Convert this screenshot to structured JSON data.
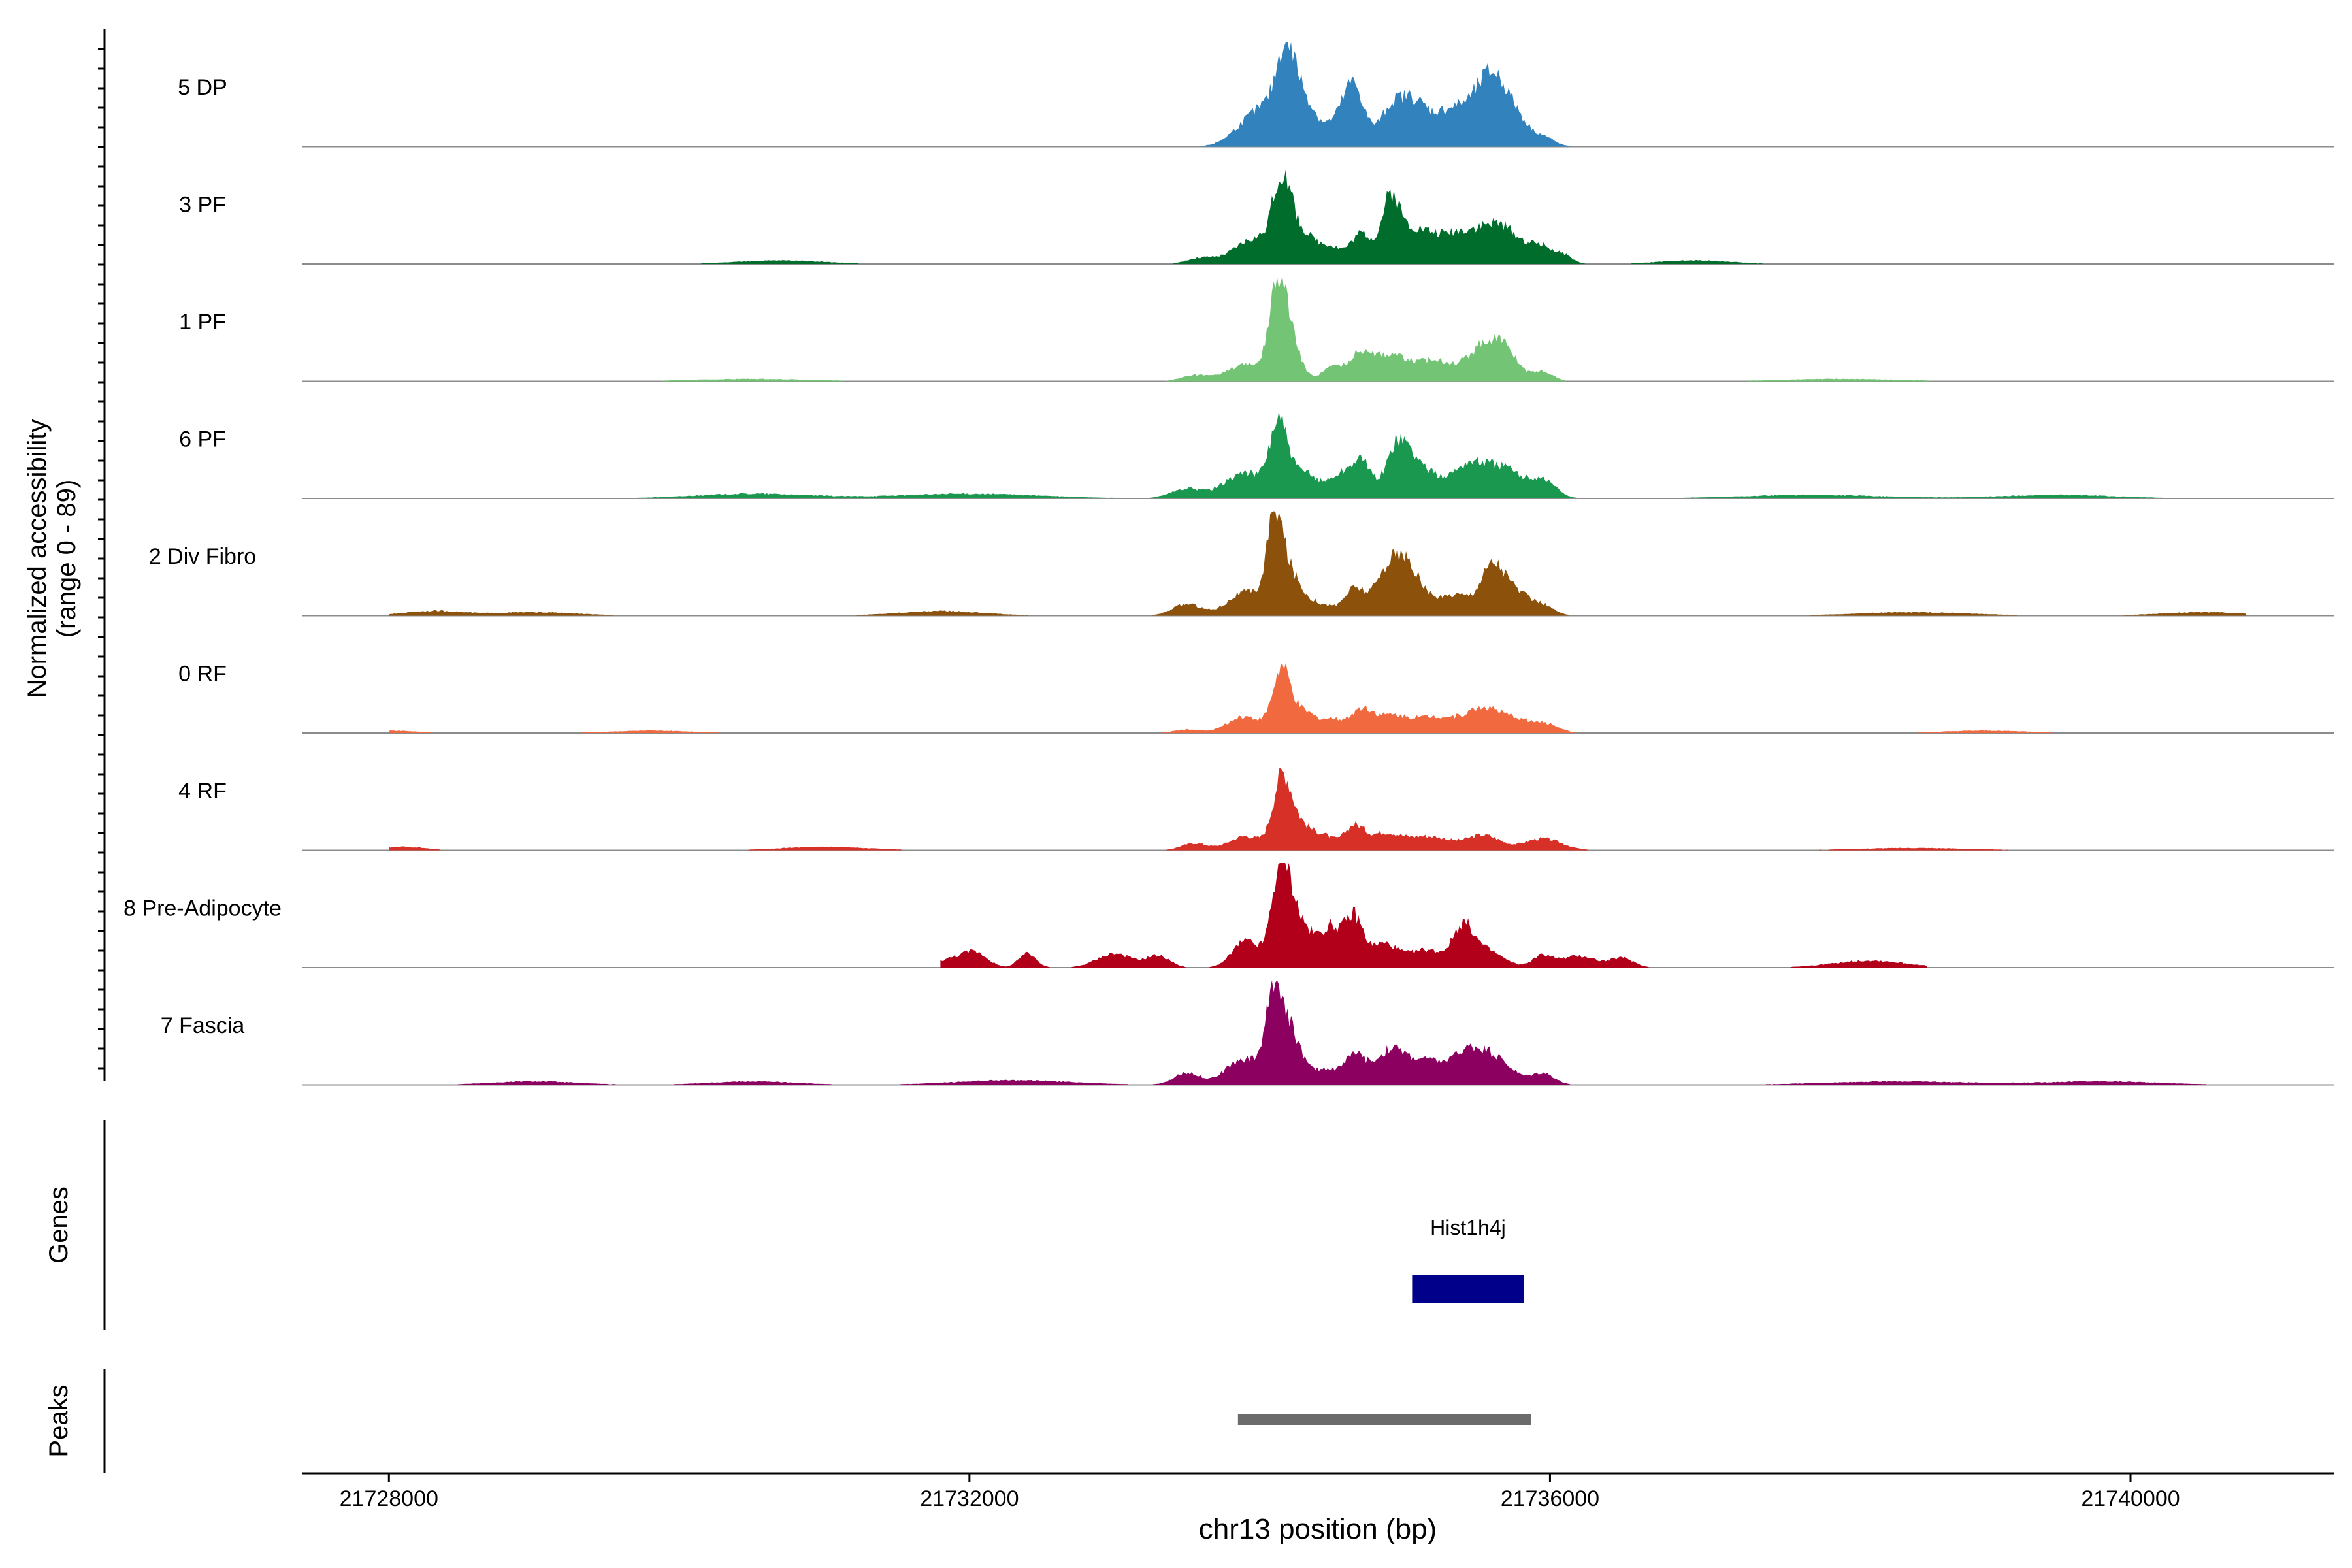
{
  "chart_data": {
    "type": "area",
    "title": "",
    "ylabel_line1": "Normalized accessibility",
    "ylabel_line2": "(range 0 - 89)",
    "xlabel": "chr13 position (bp)",
    "xlim": [
      21727400,
      21741400
    ],
    "xticks": [
      21728000,
      21732000,
      21736000,
      21740000
    ],
    "xtick_labels": [
      "21728000",
      "21732000",
      "21736000",
      "21740000"
    ],
    "ylim": [
      0,
      89
    ],
    "track_axis_label_genes": "Genes",
    "track_axis_label_peaks": "Peaks",
    "series": [
      {
        "name": "5 DP",
        "color": "#3182bd",
        "region": [
          21728000,
          21740800
        ],
        "scale": 1.0,
        "peaks": [
          [
            21733900,
            12,
            120
          ],
          [
            21734100,
            32,
            140
          ],
          [
            21734180,
            55,
            60
          ],
          [
            21734300,
            30,
            80
          ],
          [
            21734550,
            20,
            120
          ],
          [
            21734650,
            40,
            70
          ],
          [
            21734900,
            28,
            80
          ],
          [
            21735050,
            33,
            90
          ],
          [
            21735250,
            18,
            120
          ],
          [
            21735450,
            28,
            140
          ],
          [
            21735600,
            42,
            90
          ],
          [
            21735750,
            25,
            90
          ],
          [
            21735950,
            8,
            80
          ]
        ]
      },
      {
        "name": "3 PF",
        "color": "#006d2c",
        "region": [
          21728000,
          21740800
        ],
        "scale": 1.0,
        "peaks": [
          [
            21733600,
            5,
            100
          ],
          [
            21733950,
            20,
            130
          ],
          [
            21734150,
            50,
            60
          ],
          [
            21734250,
            30,
            120
          ],
          [
            21734500,
            12,
            80
          ],
          [
            21734700,
            25,
            70
          ],
          [
            21734900,
            45,
            60
          ],
          [
            21735050,
            28,
            130
          ],
          [
            21735350,
            22,
            140
          ],
          [
            21735650,
            32,
            150
          ],
          [
            21735950,
            12,
            80
          ],
          [
            21736100,
            6,
            60
          ],
          [
            21730700,
            3,
            300
          ],
          [
            21737000,
            3,
            250
          ]
        ]
      },
      {
        "name": "1 PF",
        "color": "#74c476",
        "region": [
          21728000,
          21740800
        ],
        "scale": 1.0,
        "peaks": [
          [
            21733550,
            5,
            90
          ],
          [
            21733900,
            14,
            130
          ],
          [
            21734120,
            52,
            55
          ],
          [
            21734180,
            45,
            80
          ],
          [
            21734500,
            12,
            70
          ],
          [
            21734700,
            24,
            80
          ],
          [
            21734900,
            20,
            100
          ],
          [
            21735200,
            18,
            150
          ],
          [
            21735550,
            28,
            110
          ],
          [
            21735700,
            20,
            90
          ],
          [
            21735950,
            8,
            70
          ],
          [
            21730500,
            2,
            400
          ],
          [
            21738000,
            2,
            400
          ]
        ]
      },
      {
        "name": "6 PF",
        "color": "#1a9850",
        "region": [
          21728000,
          21740800
        ],
        "scale": 1.0,
        "peaks": [
          [
            21733500,
            8,
            110
          ],
          [
            21733900,
            22,
            140
          ],
          [
            21734130,
            58,
            60
          ],
          [
            21734300,
            22,
            100
          ],
          [
            21734550,
            18,
            80
          ],
          [
            21734700,
            30,
            70
          ],
          [
            21734950,
            40,
            80
          ],
          [
            21735100,
            25,
            110
          ],
          [
            21735450,
            30,
            130
          ],
          [
            21735700,
            22,
            110
          ],
          [
            21735950,
            16,
            90
          ],
          [
            21730500,
            4,
            400
          ],
          [
            21732000,
            4,
            500
          ],
          [
            21737800,
            3,
            500
          ],
          [
            21739500,
            3,
            400
          ]
        ]
      },
      {
        "name": "2 Div Fibro",
        "color": "#8c510a",
        "region": [
          21728000,
          21740800
        ],
        "scale": 1.0,
        "peaks": [
          [
            21733500,
            10,
            100
          ],
          [
            21733900,
            20,
            120
          ],
          [
            21734100,
            62,
            50
          ],
          [
            21734180,
            40,
            90
          ],
          [
            21734400,
            10,
            100
          ],
          [
            21734650,
            22,
            70
          ],
          [
            21734900,
            40,
            100
          ],
          [
            21735050,
            28,
            100
          ],
          [
            21735350,
            18,
            110
          ],
          [
            21735600,
            38,
            80
          ],
          [
            21735750,
            20,
            100
          ],
          [
            21735950,
            8,
            80
          ],
          [
            21728300,
            4,
            200
          ],
          [
            21729000,
            3,
            300
          ],
          [
            21731800,
            4,
            300
          ],
          [
            21738500,
            3,
            400
          ],
          [
            21740500,
            3,
            300
          ]
        ]
      },
      {
        "name": "0 RF",
        "color": "#f16a3f",
        "region": [
          21728000,
          21740800
        ],
        "scale": 1.0,
        "peaks": [
          [
            21733500,
            3,
            90
          ],
          [
            21733900,
            14,
            120
          ],
          [
            21734150,
            50,
            60
          ],
          [
            21734300,
            18,
            90
          ],
          [
            21734500,
            10,
            70
          ],
          [
            21734700,
            20,
            80
          ],
          [
            21734900,
            12,
            100
          ],
          [
            21735200,
            14,
            170
          ],
          [
            21735550,
            20,
            120
          ],
          [
            21735800,
            10,
            110
          ],
          [
            21736000,
            6,
            80
          ],
          [
            21728000,
            2,
            200
          ],
          [
            21729800,
            2,
            300
          ],
          [
            21739000,
            2,
            300
          ]
        ]
      },
      {
        "name": "4 RF",
        "color": "#d73027",
        "region": [
          21728000,
          21740800
        ],
        "scale": 1.0,
        "peaks": [
          [
            21733550,
            6,
            90
          ],
          [
            21733900,
            12,
            110
          ],
          [
            21734150,
            50,
            60
          ],
          [
            21734250,
            25,
            100
          ],
          [
            21734450,
            10,
            70
          ],
          [
            21734650,
            20,
            70
          ],
          [
            21734850,
            12,
            100
          ],
          [
            21735150,
            12,
            180
          ],
          [
            21735550,
            12,
            110
          ],
          [
            21735950,
            10,
            130
          ],
          [
            21728100,
            3,
            150
          ],
          [
            21731000,
            3,
            300
          ],
          [
            21738500,
            2,
            400
          ]
        ]
      },
      {
        "name": "8 Pre-Adipocyte",
        "color": "#b2001b",
        "region": [
          21731800,
          21738600
        ],
        "scale": 1.0,
        "peaks": [
          [
            21731900,
            8,
            120
          ],
          [
            21732050,
            10,
            80
          ],
          [
            21732400,
            12,
            60
          ],
          [
            21733000,
            12,
            120
          ],
          [
            21733300,
            10,
            80
          ],
          [
            21733900,
            22,
            90
          ],
          [
            21734150,
            70,
            60
          ],
          [
            21734250,
            40,
            120
          ],
          [
            21734500,
            30,
            70
          ],
          [
            21734650,
            40,
            60
          ],
          [
            21734850,
            20,
            100
          ],
          [
            21735150,
            15,
            120
          ],
          [
            21735400,
            30,
            70
          ],
          [
            21735550,
            15,
            120
          ],
          [
            21735950,
            10,
            70
          ],
          [
            21736200,
            10,
            120
          ],
          [
            21736500,
            8,
            80
          ],
          [
            21738200,
            6,
            250
          ]
        ]
      },
      {
        "name": "7 Fascia",
        "color": "#8c0060",
        "region": [
          21728000,
          21740800
        ],
        "scale": 1.0,
        "peaks": [
          [
            21733500,
            10,
            90
          ],
          [
            21733900,
            22,
            130
          ],
          [
            21734100,
            60,
            55
          ],
          [
            21734200,
            45,
            90
          ],
          [
            21734450,
            12,
            70
          ],
          [
            21734650,
            25,
            80
          ],
          [
            21734900,
            28,
            100
          ],
          [
            21735150,
            20,
            130
          ],
          [
            21735450,
            28,
            110
          ],
          [
            21735650,
            18,
            110
          ],
          [
            21735950,
            10,
            80
          ],
          [
            21729000,
            3,
            300
          ],
          [
            21730500,
            3,
            300
          ],
          [
            21732300,
            4,
            400
          ],
          [
            21738400,
            3,
            500
          ],
          [
            21739800,
            3,
            400
          ]
        ]
      }
    ],
    "genes": [
      {
        "name": "Hist1h4j",
        "start": 21735050,
        "end": 21735820,
        "color": "#00008b"
      }
    ],
    "peak_regions": [
      {
        "start": 21733850,
        "end": 21735870,
        "color": "#6b6b6b"
      }
    ]
  }
}
